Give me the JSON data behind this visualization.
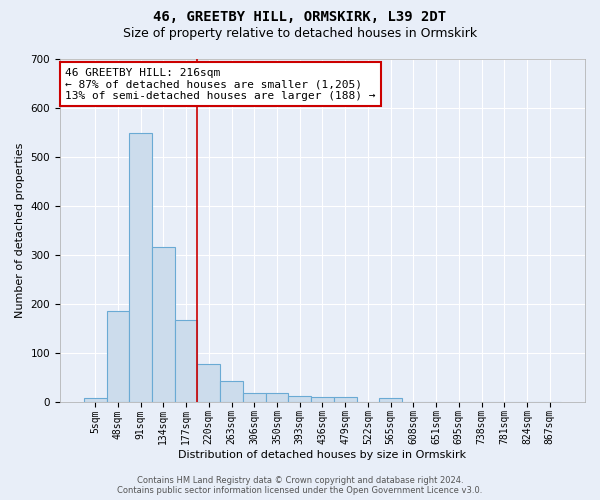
{
  "title": "46, GREETBY HILL, ORMSKIRK, L39 2DT",
  "subtitle": "Size of property relative to detached houses in Ormskirk",
  "xlabel": "Distribution of detached houses by size in Ormskirk",
  "ylabel": "Number of detached properties",
  "bar_labels": [
    "5sqm",
    "48sqm",
    "91sqm",
    "134sqm",
    "177sqm",
    "220sqm",
    "263sqm",
    "306sqm",
    "350sqm",
    "393sqm",
    "436sqm",
    "479sqm",
    "522sqm",
    "565sqm",
    "608sqm",
    "651sqm",
    "695sqm",
    "738sqm",
    "781sqm",
    "824sqm",
    "867sqm"
  ],
  "bar_values": [
    8,
    185,
    548,
    315,
    167,
    77,
    43,
    17,
    17,
    11,
    10,
    10,
    0,
    7,
    0,
    0,
    0,
    0,
    0,
    0,
    0
  ],
  "bar_color": "#ccdcec",
  "bar_edge_color": "#6aaad4",
  "bar_edge_width": 0.8,
  "vline_index": 5,
  "vline_color": "#cc0000",
  "ylim": [
    0,
    700
  ],
  "yticks": [
    0,
    100,
    200,
    300,
    400,
    500,
    600,
    700
  ],
  "annotation_text": "46 GREETBY HILL: 216sqm\n← 87% of detached houses are smaller (1,205)\n13% of semi-detached houses are larger (188) →",
  "annotation_box_color": "#ffffff",
  "annotation_box_edge_color": "#cc0000",
  "footer_line1": "Contains HM Land Registry data © Crown copyright and database right 2024.",
  "footer_line2": "Contains public sector information licensed under the Open Government Licence v3.0.",
  "background_color": "#e8eef8",
  "grid_color": "#ffffff",
  "title_fontsize": 10,
  "subtitle_fontsize": 9,
  "tick_fontsize": 7,
  "ylabel_fontsize": 8,
  "xlabel_fontsize": 8,
  "annotation_fontsize": 8
}
